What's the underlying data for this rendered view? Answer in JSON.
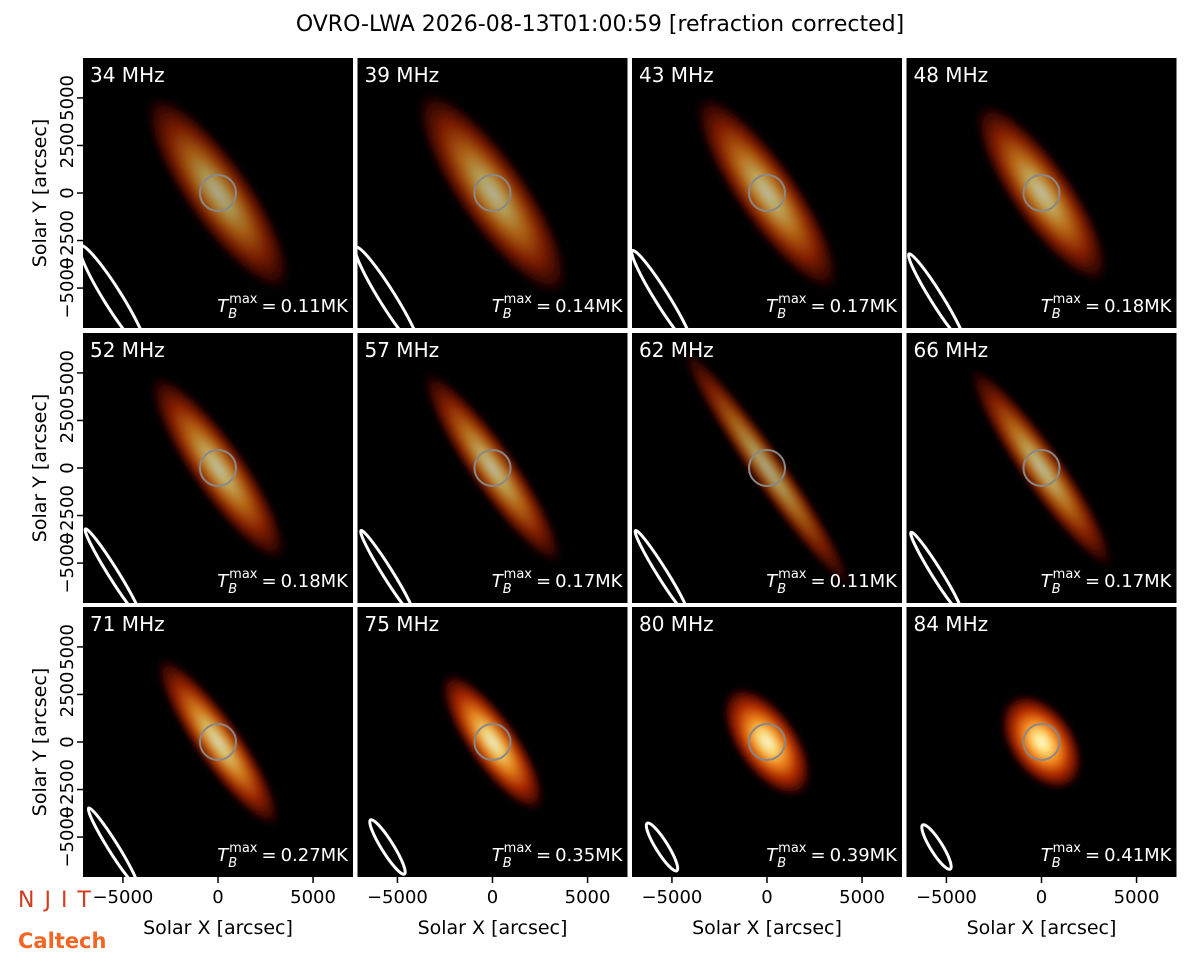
{
  "title": "OVRO-LWA 2026-08-13T01:00:59 [refraction corrected]",
  "x_label": "Solar X [arcsec]",
  "y_label": "Solar Y [arcsec]",
  "tb_symbol": {
    "base": "T",
    "sub": "B",
    "sup": "max",
    "relation": "="
  },
  "logos": [
    "NJIT",
    "Caltech"
  ],
  "axes": {
    "xlim": [
      -7100,
      7100
    ],
    "ylim": [
      -7100,
      7100
    ],
    "xticks": [
      {
        "value": -5000,
        "label": "−5000"
      },
      0,
      5000
    ],
    "yticks": [
      {
        "value": -5000,
        "label": "−5000"
      },
      {
        "value": -2500,
        "label": "−2500"
      },
      0,
      2500,
      5000
    ]
  },
  "chart_data": [
    {
      "type": "image",
      "title": "34 MHz",
      "tb_max": 0.11,
      "tb_label": "0.11MK"
    },
    {
      "type": "image",
      "title": "39 MHz",
      "tb_max": 0.14,
      "tb_label": "0.14MK"
    },
    {
      "type": "image",
      "title": "43 MHz",
      "tb_max": 0.17,
      "tb_label": "0.17MK"
    },
    {
      "type": "image",
      "title": "48 MHz",
      "tb_max": 0.18,
      "tb_label": "0.18MK"
    },
    {
      "type": "image",
      "title": "52 MHz",
      "tb_max": 0.18,
      "tb_label": "0.18MK"
    },
    {
      "type": "image",
      "title": "57 MHz",
      "tb_max": 0.17,
      "tb_label": "0.17MK"
    },
    {
      "type": "image",
      "title": "62 MHz",
      "tb_max": 0.11,
      "tb_label": "0.11MK"
    },
    {
      "type": "image",
      "title": "66 MHz",
      "tb_max": 0.17,
      "tb_label": "0.17MK"
    },
    {
      "type": "image",
      "title": "71 MHz",
      "tb_max": 0.27,
      "tb_label": "0.27MK"
    },
    {
      "type": "image",
      "title": "75 MHz",
      "tb_max": 0.35,
      "tb_label": "0.35MK"
    },
    {
      "type": "image",
      "title": "80 MHz",
      "tb_max": 0.39,
      "tb_label": "0.39MK"
    },
    {
      "type": "image",
      "title": "84 MHz",
      "tb_max": 0.41,
      "tb_label": "0.41MK"
    }
  ]
}
